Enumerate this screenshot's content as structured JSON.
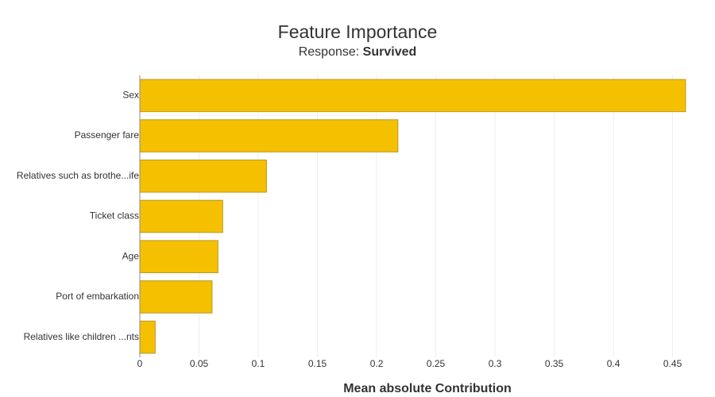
{
  "chart_data": {
    "type": "hbar",
    "title": "Feature Importance",
    "subtitle": "Response:",
    "response": "Survived",
    "x_label": "Mean absolute Contribution",
    "categories": [
      "Sex",
      "Passenger fare",
      "Relatives such as brothe...ife",
      "Ticket class",
      "Age",
      "Port of embarkation",
      "Relatives like children ...nts"
    ],
    "values": [
      0.461,
      0.218,
      0.107,
      0.07,
      0.066,
      0.061,
      0.013
    ],
    "color": "#f5c000",
    "edge_color": "#b89a2a",
    "xlim": [
      0,
      0.461
    ],
    "xticks": [
      0,
      0.05,
      0.1,
      0.15,
      0.2,
      0.25,
      0.3,
      0.35,
      0.4,
      0.45
    ],
    "grid": true
  }
}
